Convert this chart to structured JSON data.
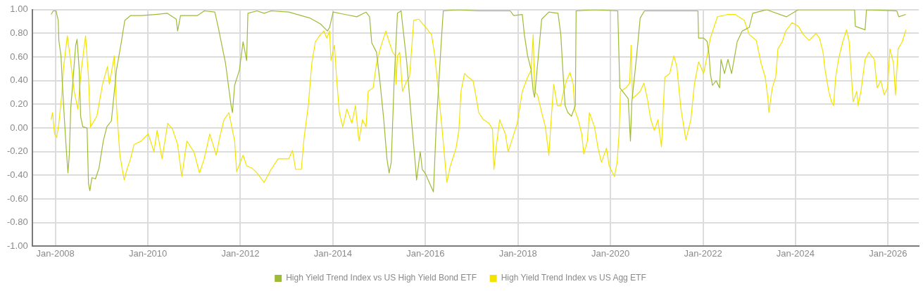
{
  "chart_data": {
    "type": "line",
    "xlim": [
      "2007-07",
      "2026-09"
    ],
    "ylim": [
      -1,
      1
    ],
    "xticks": [
      {
        "value": "2008-01",
        "label": "Jan-2008"
      },
      {
        "value": "2010-01",
        "label": "Jan-2010"
      },
      {
        "value": "2012-01",
        "label": "Jan-2012"
      },
      {
        "value": "2014-01",
        "label": "Jan-2014"
      },
      {
        "value": "2016-01",
        "label": "Jan-2016"
      },
      {
        "value": "2018-01",
        "label": "Jan-2018"
      },
      {
        "value": "2020-01",
        "label": "Jan-2020"
      },
      {
        "value": "2022-01",
        "label": "Jan-2022"
      },
      {
        "value": "2024-01",
        "label": "Jan-2024"
      },
      {
        "value": "2026-01",
        "label": "Jan-2026"
      }
    ],
    "yticks": [
      {
        "value": -1,
        "label": "-1.00"
      },
      {
        "value": -0.8,
        "label": "-0.80"
      },
      {
        "value": -0.6,
        "label": "-0.60"
      },
      {
        "value": -0.4,
        "label": "-0.40"
      },
      {
        "value": -0.2,
        "label": "-0.20"
      },
      {
        "value": 0,
        "label": "0.00"
      },
      {
        "value": 0.2,
        "label": "0.20"
      },
      {
        "value": 0.4,
        "label": "0.40"
      },
      {
        "value": 0.6,
        "label": "0.60"
      },
      {
        "value": 0.8,
        "label": "0.80"
      },
      {
        "value": 1,
        "label": "1.00"
      }
    ],
    "grid": true,
    "legend": "bottom",
    "marker": "none",
    "line_style": "solid",
    "series": [
      {
        "name": "High Yield Trend Index vs US High Yield Bond ETF",
        "color": "#9dbb37",
        "x": [
          "2007-11-28",
          "2007-12-15",
          "2008-01-06",
          "2008-01-23",
          "2008-01-28",
          "2008-02-14",
          "2008-02-25",
          "2008-03-12",
          "2008-03-28",
          "2008-04-09",
          "2008-04-20",
          "2008-05-01",
          "2008-05-17",
          "2008-06-09",
          "2008-06-20",
          "2008-07-07",
          "2008-07-18",
          "2008-08-04",
          "2008-09-07",
          "2008-09-18",
          "2008-09-29",
          "2008-10-15",
          "2008-11-12",
          "2008-12-10",
          "2009-01-13",
          "2009-02-10",
          "2009-03-18",
          "2009-04-27",
          "2009-06-05",
          "2009-07-02",
          "2009-08-16",
          "2009-11-08",
          "2010-02-28",
          "2010-06-01",
          "2010-08-12",
          "2010-08-23",
          "2010-09-15",
          "2011-01-26",
          "2011-03-21",
          "2011-06-13",
          "2011-07-10",
          "2011-09-05",
          "2011-10-19",
          "2011-10-30",
          "2011-11-16",
          "2011-12-24",
          "2012-01-22",
          "2012-02-19",
          "2012-02-29",
          "2012-05-11",
          "2012-07-06",
          "2012-08-30",
          "2013-01-17",
          "2013-07-01",
          "2013-09-24",
          "2013-11-18",
          "2013-12-05",
          "2014-01-02",
          "2014-04-05",
          "2014-07-08",
          "2014-09-19",
          "2014-10-17",
          "2014-11-03",
          "2014-12-11",
          "2015-01-09",
          "2015-02-06",
          "2015-03-03",
          "2015-03-20",
          "2015-04-06",
          "2015-04-28",
          "2015-05-14",
          "2015-05-25",
          "2015-06-23",
          "2015-07-04",
          "2015-08-07",
          "2015-09-15",
          "2015-10-12",
          "2015-10-23",
          "2015-11-21",
          "2015-12-07",
          "2015-12-29",
          "2016-03-04",
          "2016-03-26",
          "2016-05-05",
          "2016-05-21",
          "2016-09-11",
          "2017-02-25",
          "2017-06-14",
          "2017-11-01",
          "2017-11-28",
          "2018-02-04",
          "2018-02-20",
          "2018-03-18",
          "2018-04-15",
          "2018-05-01",
          "2018-05-12",
          "2018-07-07",
          "2018-09-02",
          "2018-11-13",
          "2018-12-05",
          "2018-12-21",
          "2019-01-08",
          "2019-01-30",
          "2019-02-27",
          "2019-03-30",
          "2019-04-05",
          "2019-08-28",
          "2020-02-28",
          "2020-03-15",
          "2020-05-20",
          "2020-06-07",
          "2020-06-18",
          "2020-07-26",
          "2020-08-23",
          "2020-09-26",
          "2021-04-02",
          "2021-11-22",
          "2021-11-27",
          "2022-01-06",
          "2022-02-03",
          "2022-02-19",
          "2022-02-28",
          "2022-03-17",
          "2022-04-14",
          "2022-05-12",
          "2022-05-23",
          "2022-06-20",
          "2022-07-17",
          "2022-08-15",
          "2022-09-28",
          "2022-11-07",
          "2023-01-01",
          "2023-01-29",
          "2023-05-18",
          "2023-10-21",
          "2024-01-24",
          "2025-04-12",
          "2025-04-18",
          "2025-07-04",
          "2025-07-15",
          "2026-03-11",
          "2026-03-27",
          "2026-05-22"
        ],
        "values": [
          0.96,
          0.99,
          0.99,
          0.91,
          0.74,
          0.61,
          0.37,
          0.07,
          -0.2,
          -0.38,
          -0.22,
          0.17,
          0.38,
          0.7,
          0.75,
          0.49,
          0.1,
          0.01,
          0.0,
          -0.47,
          -0.53,
          -0.42,
          -0.43,
          -0.34,
          -0.11,
          0.01,
          0.06,
          0.49,
          0.73,
          0.91,
          0.95,
          0.95,
          0.96,
          0.97,
          0.92,
          0.82,
          0.95,
          0.95,
          0.99,
          0.98,
          0.85,
          0.55,
          0.19,
          0.13,
          0.36,
          0.49,
          0.73,
          0.57,
          0.97,
          0.99,
          0.97,
          0.99,
          0.98,
          0.93,
          0.88,
          0.82,
          0.85,
          0.98,
          0.96,
          0.94,
          0.98,
          0.94,
          0.72,
          0.64,
          0.37,
          0.07,
          -0.26,
          -0.38,
          -0.29,
          0.37,
          0.73,
          0.97,
          0.99,
          0.88,
          0.55,
          0.04,
          -0.29,
          -0.44,
          -0.2,
          -0.35,
          -0.38,
          -0.54,
          0.01,
          0.73,
          0.99,
          1.0,
          0.99,
          0.99,
          0.99,
          0.95,
          0.96,
          0.79,
          0.61,
          0.49,
          0.31,
          0.26,
          0.92,
          0.98,
          0.97,
          0.79,
          0.49,
          0.19,
          0.13,
          0.1,
          0.19,
          0.99,
          1.0,
          0.99,
          0.34,
          0.25,
          -0.11,
          0.22,
          0.61,
          0.93,
          0.99,
          0.99,
          0.99,
          0.76,
          0.76,
          0.73,
          0.61,
          0.46,
          0.36,
          0.4,
          0.34,
          0.58,
          0.46,
          0.58,
          0.46,
          0.73,
          0.82,
          0.85,
          0.97,
          1.0,
          0.94,
          1.0,
          1.0,
          0.86,
          0.83,
          1.0,
          0.99,
          0.94,
          0.96
        ]
      },
      {
        "name": "High Yield Trend Index vs US Agg ETF",
        "color": "#f2e400",
        "x": [
          "2007-11-28",
          "2007-12-09",
          "2007-12-25",
          "2008-01-11",
          "2008-01-28",
          "2008-02-20",
          "2008-03-06",
          "2008-04-04",
          "2008-04-25",
          "2008-05-28",
          "2008-06-26",
          "2008-07-23",
          "2008-08-26",
          "2008-09-18",
          "2008-10-04",
          "2008-10-21",
          "2008-11-23",
          "2009-01-07",
          "2009-02-15",
          "2009-03-02",
          "2009-04-10",
          "2009-04-27",
          "2009-05-24",
          "2009-06-27",
          "2009-07-19",
          "2009-08-16",
          "2009-09-13",
          "2009-11-08",
          "2010-01-03",
          "2010-02-17",
          "2010-03-14",
          "2010-04-22",
          "2010-06-06",
          "2010-07-14",
          "2010-08-23",
          "2010-09-25",
          "2010-11-04",
          "2010-12-29",
          "2011-02-12",
          "2011-03-21",
          "2011-05-04",
          "2011-06-24",
          "2011-07-21",
          "2011-08-24",
          "2011-10-02",
          "2011-11-16",
          "2011-12-02",
          "2012-01-22",
          "2012-02-19",
          "2012-04-03",
          "2012-05-11",
          "2012-07-06",
          "2012-08-30",
          "2012-10-25",
          "2013-01-17",
          "2013-02-15",
          "2013-03-12",
          "2013-04-26",
          "2013-05-18",
          "2013-06-20",
          "2013-07-18",
          "2013-08-15",
          "2013-09-24",
          "2013-10-21",
          "2013-11-13",
          "2013-12-05",
          "2013-12-16",
          "2014-01-13",
          "2014-01-29",
          "2014-02-20",
          "2014-03-19",
          "2014-04-21",
          "2014-05-30",
          "2014-06-27",
          "2014-07-25",
          "2014-08-22",
          "2014-09-19",
          "2014-10-06",
          "2014-11-14",
          "2014-12-11",
          "2015-01-09",
          "2015-02-22",
          "2015-03-20",
          "2015-04-17",
          "2015-05-09",
          "2015-05-14",
          "2015-05-25",
          "2015-06-12",
          "2015-07-04",
          "2015-08-07",
          "2015-08-28",
          "2015-10-01",
          "2015-11-10",
          "2016-01-04",
          "2016-02-18",
          "2016-03-15",
          "2016-04-07",
          "2016-05-10",
          "2016-06-18",
          "2016-07-16",
          "2016-08-30",
          "2016-09-21",
          "2016-10-08",
          "2016-11-05",
          "2016-12-03",
          "2017-01-11",
          "2017-01-27",
          "2017-02-25",
          "2017-04-03",
          "2017-05-17",
          "2017-06-14",
          "2017-06-25",
          "2017-07-12",
          "2017-08-09",
          "2017-09-23",
          "2017-10-15",
          "2017-11-12",
          "2017-12-26",
          "2018-02-04",
          "2018-03-18",
          "2018-04-15",
          "2018-05-01",
          "2018-05-12",
          "2018-06-04",
          "2018-07-07",
          "2018-08-05",
          "2018-09-02",
          "2018-09-18",
          "2018-10-10",
          "2018-11-08",
          "2018-12-05",
          "2018-12-21",
          "2019-01-19",
          "2019-02-16",
          "2019-03-13",
          "2019-03-24",
          "2019-04-22",
          "2019-05-19",
          "2019-06-05",
          "2019-07-03",
          "2019-07-19",
          "2019-08-28",
          "2019-09-25",
          "2019-10-22",
          "2019-12-01",
          "2019-12-22",
          "2020-02-01",
          "2020-02-23",
          "2020-03-09",
          "2020-03-20",
          "2020-05-04",
          "2020-06-01",
          "2020-06-12",
          "2020-06-23",
          "2020-07-26",
          "2020-08-23",
          "2020-09-21",
          "2020-10-18",
          "2020-11-15",
          "2020-12-13",
          "2021-01-10",
          "2021-02-07",
          "2021-03-05",
          "2021-04-13",
          "2021-05-16",
          "2021-06-08",
          "2021-07-11",
          "2021-08-19",
          "2021-09-27",
          "2021-10-25",
          "2021-11-27",
          "2022-01-06",
          "2022-02-03",
          "2022-02-28",
          "2022-03-28",
          "2022-04-25",
          "2022-07-17",
          "2022-09-12",
          "2022-11-23",
          "2023-01-01",
          "2023-02-26",
          "2023-04-04",
          "2023-05-07",
          "2023-05-29",
          "2023-06-05",
          "2023-07-02",
          "2023-07-29",
          "2023-08-16",
          "2023-09-19",
          "2023-10-16",
          "2023-12-05",
          "2024-01-24",
          "2024-03-03",
          "2024-04-17",
          "2024-06-11",
          "2024-07-09",
          "2024-08-06",
          "2024-08-22",
          "2024-09-20",
          "2024-10-12",
          "2024-10-28",
          "2024-11-14",
          "2024-12-06",
          "2025-01-09",
          "2025-02-07",
          "2025-02-28",
          "2025-03-15",
          "2025-04-01",
          "2025-04-29",
          "2025-05-10",
          "2025-06-01",
          "2025-07-04",
          "2025-08-02",
          "2025-09-15",
          "2025-10-07",
          "2025-11-05",
          "2025-12-02",
          "2025-12-29",
          "2026-01-16",
          "2026-02-13",
          "2026-03-01",
          "2026-03-22",
          "2026-04-24",
          "2026-05-22"
        ],
        "values": [
          0.07,
          0.13,
          -0.05,
          -0.08,
          0.04,
          0.28,
          0.52,
          0.78,
          0.61,
          0.31,
          0.16,
          0.49,
          0.78,
          0.43,
          0.01,
          0.04,
          0.1,
          0.37,
          0.52,
          0.37,
          0.61,
          0.19,
          -0.23,
          -0.44,
          -0.35,
          -0.26,
          -0.14,
          -0.11,
          -0.05,
          -0.2,
          -0.02,
          -0.26,
          0.04,
          -0.01,
          -0.14,
          -0.41,
          -0.11,
          -0.2,
          -0.38,
          -0.26,
          -0.05,
          -0.23,
          -0.08,
          0.07,
          0.13,
          -0.11,
          -0.37,
          -0.23,
          -0.32,
          -0.34,
          -0.38,
          -0.46,
          -0.35,
          -0.26,
          -0.26,
          -0.19,
          -0.35,
          -0.35,
          -0.08,
          0.19,
          0.55,
          0.73,
          0.79,
          0.82,
          0.76,
          0.82,
          0.57,
          0.7,
          0.43,
          0.13,
          0.01,
          0.16,
          0.04,
          0.19,
          -0.11,
          0.07,
          0.01,
          0.31,
          0.34,
          0.55,
          0.67,
          0.82,
          0.73,
          0.64,
          0.61,
          0.37,
          0.61,
          0.64,
          0.31,
          0.4,
          0.43,
          0.91,
          0.92,
          0.85,
          0.79,
          0.61,
          0.37,
          0.01,
          -0.46,
          -0.32,
          -0.17,
          -0.02,
          0.31,
          0.46,
          0.43,
          0.4,
          0.31,
          0.13,
          0.07,
          0.04,
          -0.01,
          -0.35,
          -0.17,
          0.07,
          -0.05,
          -0.2,
          -0.11,
          0.04,
          0.31,
          0.43,
          0.49,
          0.79,
          0.31,
          0.28,
          0.13,
          0.01,
          -0.23,
          0.04,
          0.37,
          0.19,
          0.19,
          0.28,
          0.4,
          0.47,
          0.37,
          0.16,
          0.07,
          -0.05,
          -0.22,
          -0.11,
          0.13,
          0.01,
          -0.17,
          -0.29,
          -0.17,
          -0.32,
          -0.41,
          -0.29,
          -0.05,
          0.31,
          0.34,
          0.38,
          0.7,
          0.25,
          0.28,
          0.31,
          0.38,
          0.25,
          0.07,
          -0.02,
          0.07,
          -0.16,
          0.43,
          0.46,
          0.61,
          0.52,
          0.16,
          -0.1,
          0.07,
          0.37,
          0.56,
          0.46,
          0.61,
          0.76,
          0.85,
          0.94,
          0.96,
          0.96,
          0.91,
          0.79,
          0.74,
          0.55,
          0.43,
          0.25,
          0.13,
          0.34,
          0.43,
          0.67,
          0.73,
          0.82,
          0.89,
          0.86,
          0.79,
          0.74,
          0.8,
          0.76,
          0.64,
          0.49,
          0.31,
          0.22,
          0.19,
          0.43,
          0.58,
          0.73,
          0.83,
          0.73,
          0.49,
          0.22,
          0.31,
          0.19,
          0.31,
          0.58,
          0.64,
          0.58,
          0.34,
          0.4,
          0.28,
          0.34,
          0.67,
          0.55,
          0.28,
          0.67,
          0.73,
          0.83
        ]
      }
    ]
  }
}
